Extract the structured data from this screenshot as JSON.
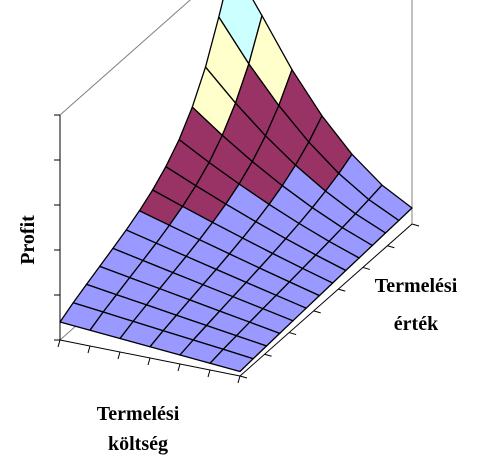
{
  "chart_data": {
    "type": "surface",
    "title": "",
    "zlabel": "Profit",
    "xlabel": [
      "Termelési",
      "költség"
    ],
    "ylabel": [
      "Termelési",
      "érték"
    ],
    "grid": true,
    "legend": "none",
    "x_steps": 6,
    "y_steps": 13,
    "z_function": "profit rises with production value and falls with production cost",
    "bands": [
      {
        "range": [
          0.0,
          0.25
        ],
        "color": "#9999ff"
      },
      {
        "range": [
          0.25,
          0.5
        ],
        "color": "#993366"
      },
      {
        "range": [
          0.5,
          0.75
        ],
        "color": "#ffffcc"
      },
      {
        "range": [
          0.75,
          1.0
        ],
        "color": "#ccffff"
      }
    ]
  }
}
